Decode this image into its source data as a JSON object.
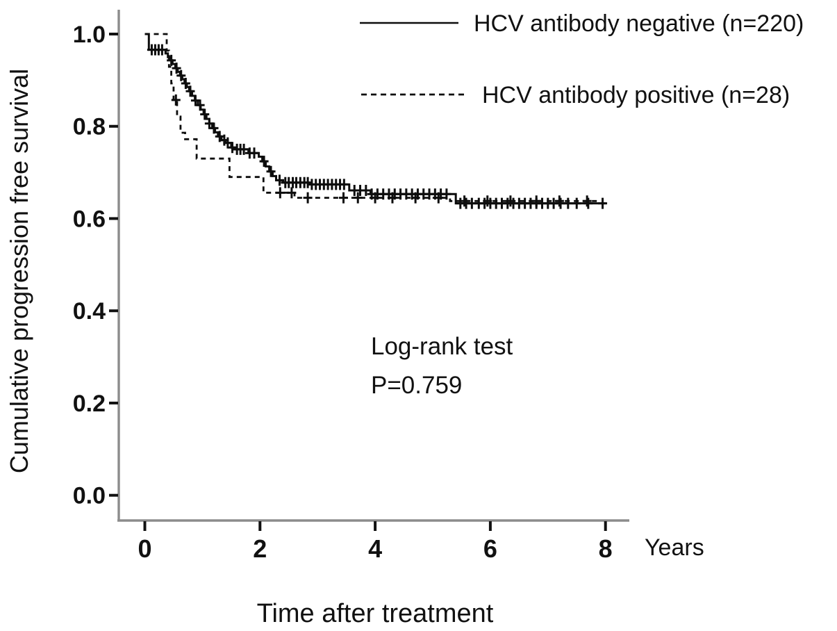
{
  "figure": {
    "background": "#ffffff",
    "axis_color": "#8c8c8c",
    "tick_color": "#111111",
    "line_color": "#0d0d0d",
    "text_color": "#111111"
  },
  "chart_data": {
    "type": "line",
    "subtype": "kaplan-meier-step-curve",
    "title": "",
    "xlabel": "Time after treatment",
    "x_unit_label": "Years",
    "ylabel": "Cumulative progression free survival",
    "xlim": [
      0,
      8
    ],
    "xticks": [
      "0",
      "2",
      "4",
      "6",
      "8"
    ],
    "xtick_values": [
      0,
      2,
      4,
      6,
      8
    ],
    "ylim": [
      0.0,
      1.0
    ],
    "yticks": [
      "0.0",
      "0.2",
      "0.4",
      "0.6",
      "0.8",
      "1.0"
    ],
    "ytick_values": [
      0.0,
      0.2,
      0.4,
      0.6,
      0.8,
      1.0
    ],
    "grid": "off",
    "legend_position": "top-right",
    "annotation": {
      "line1": "Log-rank test",
      "line2": "P=0.759"
    },
    "legend": [
      {
        "label": "HCV antibody negative (n=220)",
        "style": "solid"
      },
      {
        "label": "HCV antibody positive (n=28)",
        "style": "dashed"
      }
    ],
    "series": [
      {
        "name": "HCV antibody negative (n=220)",
        "n": 220,
        "style": "solid",
        "steps": [
          [
            0,
            1.0
          ],
          [
            0.07,
            0.966
          ],
          [
            0.36,
            0.958
          ],
          [
            0.4,
            0.95
          ],
          [
            0.44,
            0.943
          ],
          [
            0.48,
            0.935
          ],
          [
            0.53,
            0.926
          ],
          [
            0.57,
            0.918
          ],
          [
            0.61,
            0.91
          ],
          [
            0.65,
            0.902
          ],
          [
            0.69,
            0.893
          ],
          [
            0.73,
            0.885
          ],
          [
            0.77,
            0.876
          ],
          [
            0.82,
            0.866
          ],
          [
            0.87,
            0.856
          ],
          [
            0.92,
            0.846
          ],
          [
            0.97,
            0.836
          ],
          [
            1.02,
            0.826
          ],
          [
            1.07,
            0.816
          ],
          [
            1.12,
            0.806
          ],
          [
            1.17,
            0.796
          ],
          [
            1.22,
            0.787
          ],
          [
            1.27,
            0.778
          ],
          [
            1.33,
            0.77
          ],
          [
            1.4,
            0.764
          ],
          [
            1.5,
            0.754
          ],
          [
            1.56,
            0.75
          ],
          [
            1.8,
            0.742
          ],
          [
            1.98,
            0.734
          ],
          [
            2.04,
            0.724
          ],
          [
            2.1,
            0.713
          ],
          [
            2.16,
            0.702
          ],
          [
            2.22,
            0.692
          ],
          [
            2.28,
            0.683
          ],
          [
            2.4,
            0.678
          ],
          [
            2.85,
            0.674
          ],
          [
            3.55,
            0.661
          ],
          [
            3.92,
            0.653
          ],
          [
            5.4,
            0.633
          ]
        ],
        "end_time": 8.0,
        "censor_times": [
          0.12,
          0.18,
          0.24,
          0.3,
          0.46,
          0.55,
          0.63,
          0.71,
          0.79,
          0.88,
          0.96,
          1.04,
          1.12,
          1.2,
          1.3,
          1.38,
          1.44,
          1.52,
          1.6,
          1.66,
          1.72,
          1.82,
          1.9,
          2.07,
          2.19,
          2.34,
          2.44,
          2.5,
          2.57,
          2.63,
          2.7,
          2.77,
          2.83,
          2.9,
          2.97,
          3.04,
          3.11,
          3.18,
          3.25,
          3.32,
          3.39,
          3.46,
          3.64,
          3.74,
          3.84,
          3.94,
          4.04,
          4.14,
          4.24,
          4.34,
          4.44,
          4.54,
          4.64,
          4.74,
          4.84,
          4.94,
          5.04,
          5.14,
          5.24,
          5.48,
          5.58,
          5.68,
          5.8,
          5.9,
          6.0,
          6.1,
          6.2,
          6.3,
          6.4,
          6.5,
          6.6,
          6.7,
          6.8,
          6.9,
          7.0,
          7.1,
          7.22,
          7.35,
          7.5,
          7.7,
          7.95
        ]
      },
      {
        "name": "HCV antibody positive (n=28)",
        "n": 28,
        "style": "dashed",
        "steps": [
          [
            0,
            1.0
          ],
          [
            0.38,
            0.964
          ],
          [
            0.42,
            0.929
          ],
          [
            0.46,
            0.893
          ],
          [
            0.5,
            0.857
          ],
          [
            0.56,
            0.821
          ],
          [
            0.62,
            0.786
          ],
          [
            0.7,
            0.772
          ],
          [
            0.9,
            0.73
          ],
          [
            1.47,
            0.69
          ],
          [
            2.06,
            0.656
          ],
          [
            2.6,
            0.645
          ],
          [
            5.3,
            0.638
          ]
        ],
        "end_time": 7.85,
        "censor_times": [
          0.54,
          2.35,
          2.55,
          2.83,
          3.45,
          3.7,
          4.0,
          4.3,
          4.7,
          5.1,
          5.55,
          5.95,
          6.35,
          6.8,
          7.2,
          7.68
        ]
      }
    ]
  }
}
